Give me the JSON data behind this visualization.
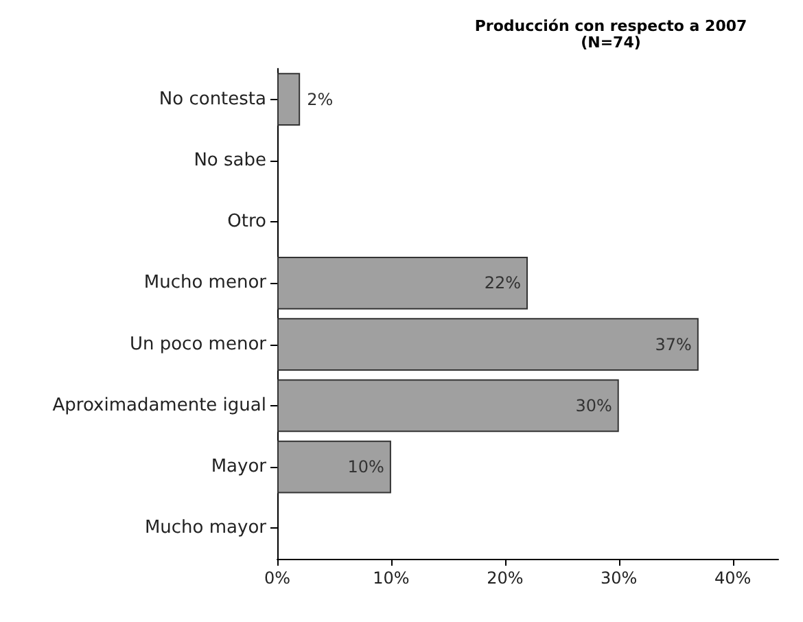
{
  "chart_data": {
    "type": "bar",
    "orientation": "horizontal",
    "title": "Producción con respecto a 2007\n(N=74)",
    "categories": [
      "No contesta",
      "No sabe",
      "Otro",
      "Mucho menor",
      "Un poco menor",
      "Aproximadamente igual",
      "Mayor",
      "Mucho mayor"
    ],
    "values": [
      2,
      0,
      0,
      22,
      37,
      30,
      10,
      0
    ],
    "value_labels": [
      "2%",
      null,
      null,
      "22%",
      "37%",
      "30%",
      "10%",
      null
    ],
    "color": "#a0a0a0",
    "xlim": [
      0,
      44
    ],
    "xticks": [
      {
        "value": 0,
        "label": "0%"
      },
      {
        "value": 10,
        "label": "10%"
      },
      {
        "value": 20,
        "label": "20%"
      },
      {
        "value": 30,
        "label": "30%"
      },
      {
        "value": 40,
        "label": "40%"
      }
    ],
    "grid": false
  }
}
